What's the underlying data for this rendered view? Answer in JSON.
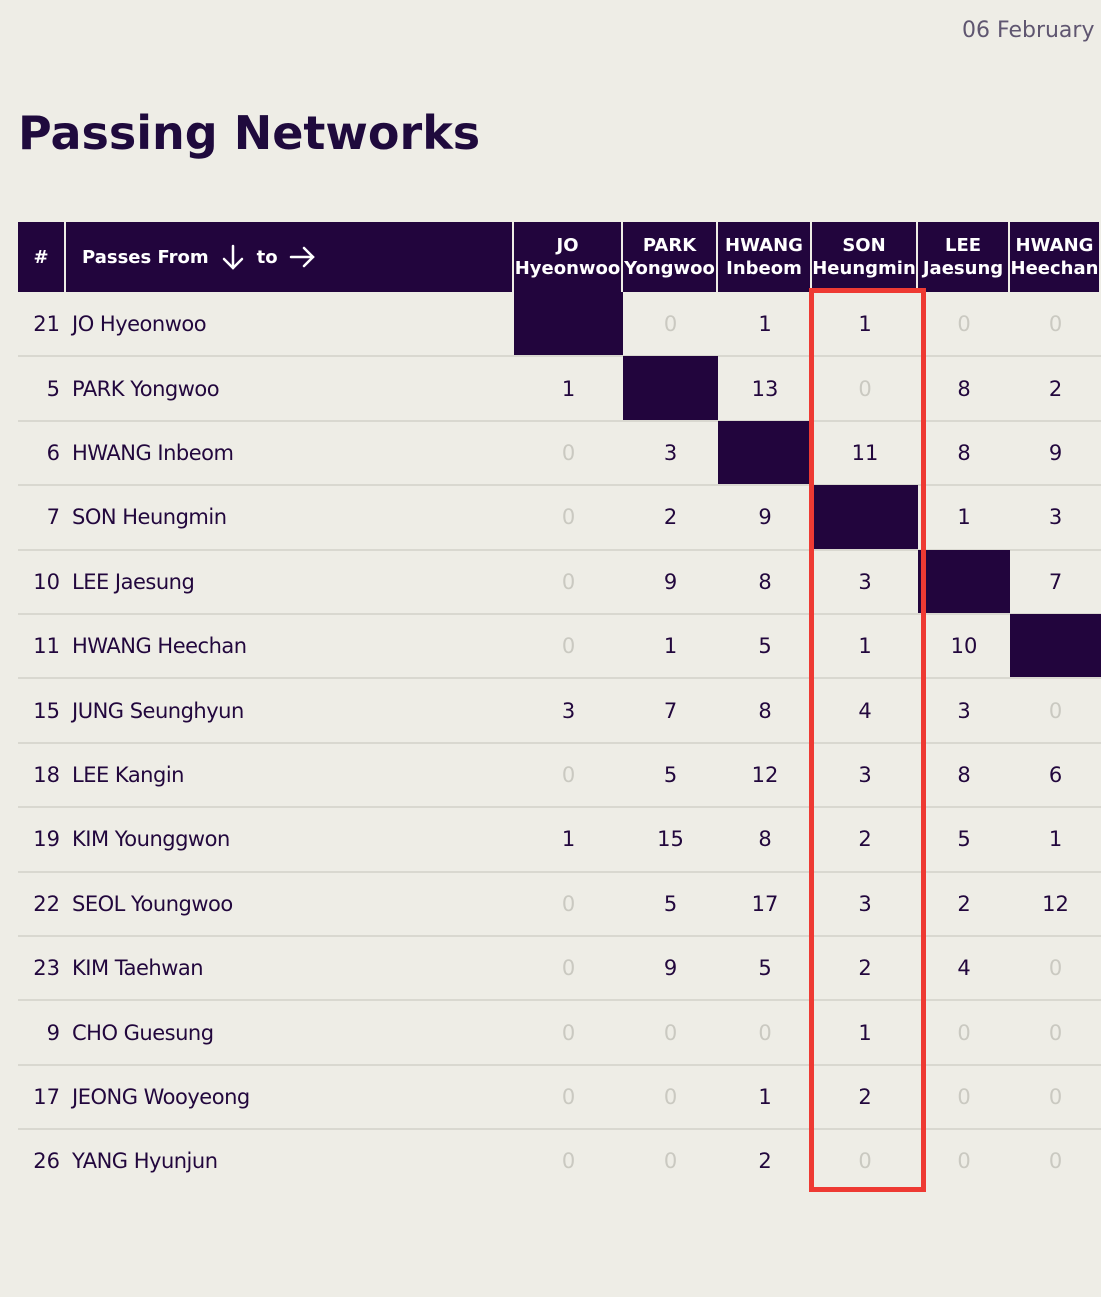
{
  "header": {
    "date": "06 February",
    "title": "Passing Networks"
  },
  "table": {
    "number_header": "#",
    "from_label": "Passes From",
    "to_label": "to",
    "columns": [
      [
        "JO",
        "Hyeonwoo"
      ],
      [
        "PARK",
        "Yongwoo"
      ],
      [
        "HWANG",
        "Inbeom"
      ],
      [
        "SON",
        "Heungmin"
      ],
      [
        "LEE",
        "Jaesung"
      ],
      [
        "HWANG",
        "Heechan"
      ]
    ],
    "rows": [
      {
        "number": "21",
        "name": "JO Hyeonwoo",
        "values": [
          null,
          0,
          1,
          1,
          0,
          0
        ]
      },
      {
        "number": "5",
        "name": "PARK Yongwoo",
        "values": [
          1,
          null,
          13,
          0,
          8,
          2
        ]
      },
      {
        "number": "6",
        "name": "HWANG Inbeom",
        "values": [
          0,
          3,
          null,
          11,
          8,
          9
        ]
      },
      {
        "number": "7",
        "name": "SON Heungmin",
        "values": [
          0,
          2,
          9,
          null,
          1,
          3
        ]
      },
      {
        "number": "10",
        "name": "LEE Jaesung",
        "values": [
          0,
          9,
          8,
          3,
          null,
          7
        ]
      },
      {
        "number": "11",
        "name": "HWANG Heechan",
        "values": [
          0,
          1,
          5,
          1,
          10,
          null
        ]
      },
      {
        "number": "15",
        "name": "JUNG Seunghyun",
        "values": [
          3,
          7,
          8,
          4,
          3,
          0
        ]
      },
      {
        "number": "18",
        "name": "LEE Kangin",
        "values": [
          0,
          5,
          12,
          3,
          8,
          6
        ]
      },
      {
        "number": "19",
        "name": "KIM Younggwon",
        "values": [
          1,
          15,
          8,
          2,
          5,
          1
        ]
      },
      {
        "number": "22",
        "name": "SEOL Youngwoo",
        "values": [
          0,
          5,
          17,
          3,
          2,
          12
        ]
      },
      {
        "number": "23",
        "name": "KIM Taehwan",
        "values": [
          0,
          9,
          5,
          2,
          4,
          0
        ]
      },
      {
        "number": "9",
        "name": "CHO Guesung",
        "values": [
          0,
          0,
          0,
          1,
          0,
          0
        ]
      },
      {
        "number": "17",
        "name": "JEONG Wooyeong",
        "values": [
          0,
          0,
          1,
          2,
          0,
          0
        ]
      },
      {
        "number": "26",
        "name": "YANG Hyunjun",
        "values": [
          0,
          0,
          2,
          0,
          0,
          0
        ]
      }
    ]
  }
}
